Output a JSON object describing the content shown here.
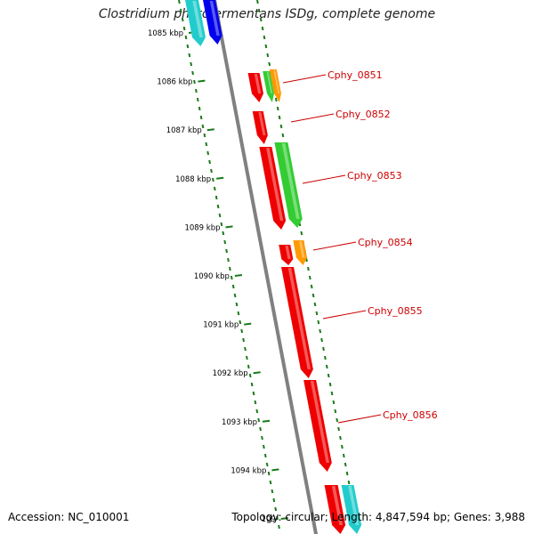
{
  "title": "Clostridium phytofermentans ISDg, complete genome",
  "accession_text": "Accession: NC_010001",
  "topology_text": "Topology: circular; Length: 4,847,594 bp; Genes: 3,988",
  "scale_labels": [
    "1085 kbp",
    "1086 kbp",
    "1087 kbp",
    "1088 kbp",
    "1089 kbp",
    "1090 kbp",
    "1091 kbp",
    "1092 kbp",
    "1093 kbp",
    "1094 kbp",
    "109"
  ],
  "gene_labels": [
    "Cphy_0851",
    "Cphy_0852",
    "Cphy_0853",
    "Cphy_0854",
    "Cphy_0855",
    "Cphy_0856"
  ],
  "colors": {
    "backbone": "#808080",
    "dots": "#1a7a1a",
    "label": "#cc0000",
    "red": "#ee0000",
    "green": "#33cc33",
    "orange": "#ff9900",
    "cyan": "#22cccc",
    "blue": "#0000ee"
  }
}
